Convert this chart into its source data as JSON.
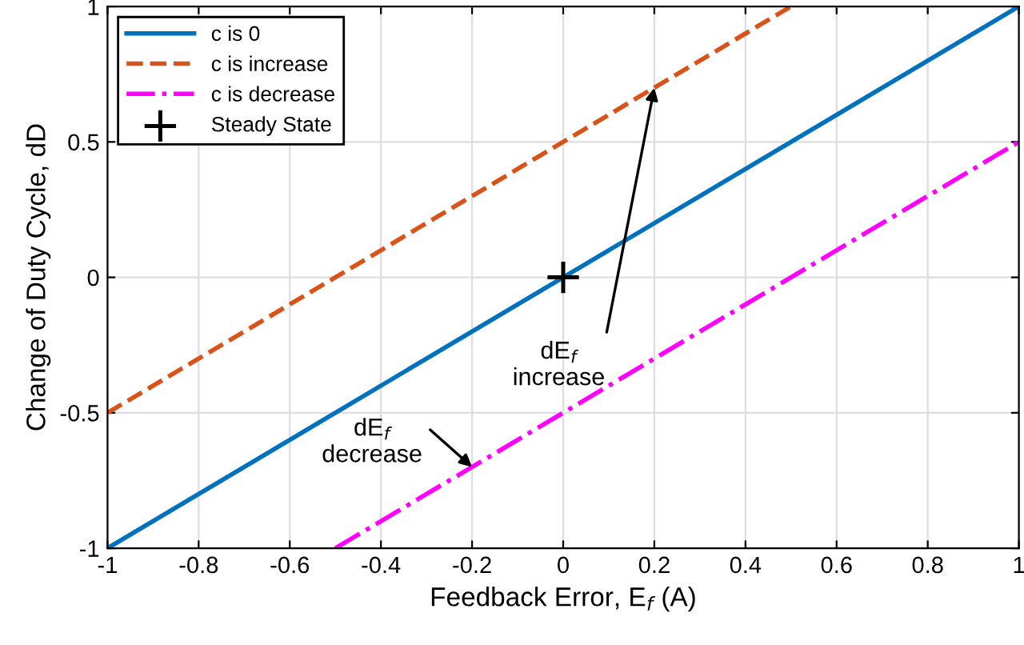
{
  "chart_data": {
    "type": "line",
    "xlabel": "Feedback Error, E$_{f}$ (A)",
    "ylabel": "Change of Duty Cycle, dD",
    "series": [
      {
        "name": "c is 0",
        "color": "#0072bd",
        "x": [
          -1,
          1
        ],
        "values": [
          -1,
          1
        ],
        "line_style": "solid"
      },
      {
        "name": "c is increase",
        "color": "#d95319",
        "x": [
          -1,
          0.5
        ],
        "values": [
          -0.5,
          1
        ],
        "line_style": "dashed"
      },
      {
        "name": "c is decrease",
        "color": "#ff00ff",
        "x": [
          -0.5,
          1
        ],
        "values": [
          -1,
          0.5
        ],
        "line_style": "dashdot"
      },
      {
        "name": "Steady State",
        "type": "scatter",
        "color": "#000000",
        "x": [
          0
        ],
        "values": [
          0
        ],
        "marker": "cross"
      }
    ],
    "annotations": [
      {
        "text": "dE$_{f}$\nincrease",
        "x": 0.2,
        "y": 0.7
      },
      {
        "text": "dE$_{f}$\ndecrease",
        "x": -0.2,
        "y": -0.7
      }
    ],
    "xlim": [
      -1,
      1
    ],
    "ylim": [
      -1,
      1
    ],
    "xticks": [
      -1,
      -0.8,
      -0.6,
      -0.4,
      -0.2,
      0,
      0.2,
      0.4,
      0.6,
      0.8,
      1
    ],
    "yticks": [
      -1,
      -0.5,
      0,
      0.5,
      1
    ],
    "grid": true,
    "legend": "top left"
  }
}
